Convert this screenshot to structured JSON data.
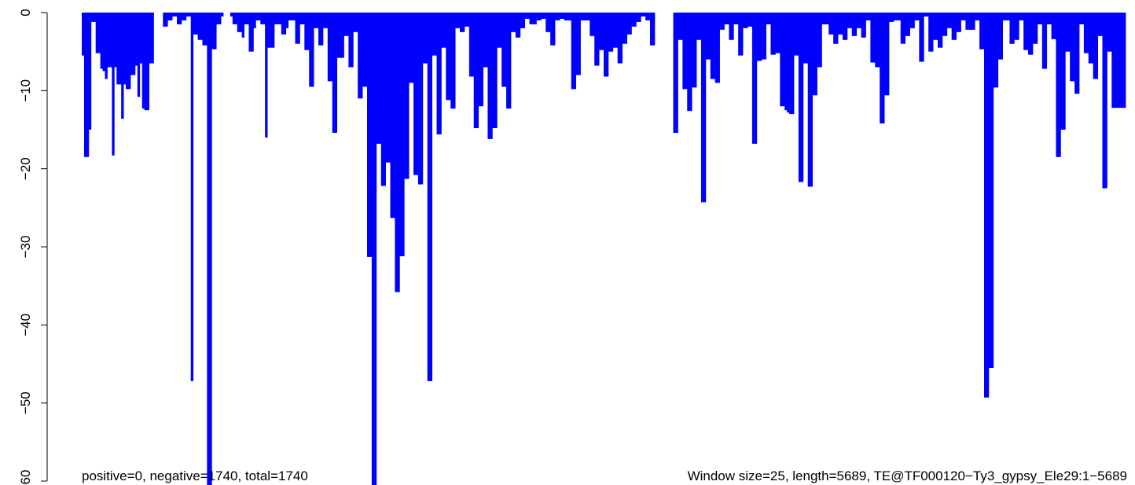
{
  "chart_data": {
    "type": "bar",
    "ylim": [
      -60,
      0
    ],
    "yticks": [
      0,
      -10,
      -20,
      -30,
      -40,
      -50,
      -60
    ],
    "ytick_labels": [
      "0",
      "−10",
      "−20",
      "−30",
      "−40",
      "−50",
      "−60"
    ],
    "grid": false,
    "bar_color": "#0000FF",
    "annotation_left": "positive=0, negative=1740, total=1740",
    "annotation_right": "Window size=25, length=5689, TE@TF000120−Ty3_gypsy_Ele29:1−5689",
    "x_range": [
      1,
      5689
    ],
    "window_size": 25,
    "bins": [
      {
        "x": 0,
        "values": [
          -5.5,
          -18.5,
          -18.5,
          -15,
          -1.2
        ]
      },
      {
        "x": 5,
        "values": [
          -1.2,
          -5.2,
          -5.2,
          -7.2,
          -7.5
        ]
      },
      {
        "x": 10,
        "values": [
          -8.5,
          -7,
          -7,
          -18.3,
          -7
        ]
      },
      {
        "x": 15,
        "values": [
          -9.2,
          -9.2,
          -13.6,
          -9.2,
          -9.8
        ]
      },
      {
        "x": 20,
        "values": [
          -9.8,
          -8,
          -8,
          -6.8,
          -10.8
        ]
      },
      {
        "x": 25,
        "values": [
          -6.5,
          -12.3,
          -12.5,
          -12.5,
          -6.5
        ]
      },
      {
        "x": 30,
        "values": [
          -6.5,
          0,
          0,
          0,
          0
        ]
      },
      {
        "x": 35,
        "values": [
          -1.8,
          -1.8,
          -1,
          -1,
          -0.5
        ]
      },
      {
        "x": 40,
        "values": [
          -0.5,
          -1.5,
          -1.5,
          -1,
          -1
        ]
      },
      {
        "x": 45,
        "values": [
          -0.5,
          -0.5,
          -47.2,
          -2.8,
          -2.8
        ]
      },
      {
        "x": 50,
        "values": [
          -3.5,
          -3.5,
          -4.2,
          -4.2,
          -61.5
        ]
      },
      {
        "x": 55,
        "values": [
          -61.5,
          -4.7,
          -4.7,
          -1.5,
          -1.5
        ]
      },
      {
        "x": 60,
        "values": [
          -0.5,
          0,
          0,
          0,
          -0.5
        ]
      },
      {
        "x": 65,
        "values": [
          -1.5,
          -1.5,
          -2.5,
          -2.5,
          -3.2
        ]
      },
      {
        "x": 70,
        "values": [
          -1.5,
          -1.5,
          -5,
          -5,
          -2
        ]
      },
      {
        "x": 75,
        "values": [
          -1,
          -1,
          -1.5,
          -1.5,
          -16
        ]
      },
      {
        "x": 80,
        "values": [
          -4.5,
          -4.5,
          -4.5,
          -1.5,
          -1.5
        ]
      },
      {
        "x": 85,
        "values": [
          -1.5,
          -2.8,
          -2.8,
          -2,
          -1
        ]
      },
      {
        "x": 90,
        "values": [
          -1,
          -1,
          -4,
          -4,
          -1.5
        ]
      },
      {
        "x": 95,
        "values": [
          -1.5,
          -4.8,
          -4.8,
          -9.5,
          -9.5
        ]
      },
      {
        "x": 100,
        "values": [
          -2,
          -2,
          -4.2,
          -4.2,
          -2
        ]
      },
      {
        "x": 105,
        "values": [
          -2,
          -8.8,
          -8.8,
          -15.4,
          -15.4
        ]
      },
      {
        "x": 110,
        "values": [
          -5.8,
          -5.8,
          -5.8,
          -3,
          -3
        ]
      },
      {
        "x": 115,
        "values": [
          -7,
          -7,
          -2.5,
          -2.5,
          -11
        ]
      },
      {
        "x": 120,
        "values": [
          -11,
          -9.5,
          -9.5,
          -31.3,
          -31.3
        ]
      },
      {
        "x": 125,
        "values": [
          -61.5,
          -61.5,
          -16.8,
          -16.8,
          -22.2
        ]
      },
      {
        "x": 130,
        "values": [
          -22.2,
          -19.2,
          -19.2,
          -26.3,
          -26.3
        ]
      },
      {
        "x": 135,
        "values": [
          -35.8,
          -35.8,
          -31.2,
          -31.2,
          -21.3
        ]
      },
      {
        "x": 140,
        "values": [
          -21.3,
          -9,
          -9,
          -20.8,
          -20.8
        ]
      },
      {
        "x": 145,
        "values": [
          -22,
          -22,
          -6.5,
          -6.5,
          -47.2
        ]
      },
      {
        "x": 150,
        "values": [
          -47.2,
          -5.5,
          -5.5,
          -15.6,
          -15.6
        ]
      },
      {
        "x": 155,
        "values": [
          -4.5,
          -4.5,
          -11.2,
          -11.2,
          -12.3
        ]
      },
      {
        "x": 160,
        "values": [
          -12.3,
          -2,
          -2,
          -2.5,
          -2.5
        ]
      },
      {
        "x": 165,
        "values": [
          -1.8,
          -1.8,
          -8.2,
          -8.2,
          -14.8
        ]
      },
      {
        "x": 170,
        "values": [
          -14.8,
          -12,
          -12,
          -7,
          -7
        ]
      },
      {
        "x": 175,
        "values": [
          -16.2,
          -16.2,
          -14.8,
          -14.8,
          -4.5
        ]
      },
      {
        "x": 180,
        "values": [
          -4.5,
          -9.5,
          -9.5,
          -12.3,
          -12.3
        ]
      },
      {
        "x": 185,
        "values": [
          -2.5,
          -2.5,
          -3.2,
          -3.2,
          -2
        ]
      },
      {
        "x": 190,
        "values": [
          -2,
          -0.8,
          -0.8,
          -1.5,
          -1.5
        ]
      },
      {
        "x": 195,
        "values": [
          -1.5,
          -1,
          -1,
          -0.8,
          -0.8
        ]
      },
      {
        "x": 200,
        "values": [
          -2.5,
          -2.5,
          -4.2,
          -4.2,
          -1
        ]
      },
      {
        "x": 205,
        "values": [
          -1,
          -0.8,
          -0.8,
          -1,
          -1
        ]
      },
      {
        "x": 210,
        "values": [
          -1,
          -9.8,
          -9.8,
          -8,
          -8
        ]
      },
      {
        "x": 215,
        "values": [
          -1,
          -1,
          -1,
          -1,
          -3
        ]
      },
      {
        "x": 220,
        "values": [
          -3,
          -6.8,
          -6.8,
          -4.8,
          -4.8
        ]
      },
      {
        "x": 225,
        "values": [
          -8.2,
          -8.2,
          -5,
          -5,
          -4.5
        ]
      },
      {
        "x": 230,
        "values": [
          -4.5,
          -6.5,
          -6.5,
          -4,
          -4
        ]
      },
      {
        "x": 235,
        "values": [
          -2.8,
          -2.8,
          -1.8,
          -1.8,
          -1.2
        ]
      },
      {
        "x": 240,
        "values": [
          -1.2,
          -0.5,
          -0.5,
          -1,
          -1
        ]
      },
      {
        "x": 245,
        "values": [
          -4.2,
          -4.2,
          0,
          0,
          0
        ]
      },
      {
        "x": 250,
        "values": [
          0,
          0,
          0,
          0,
          0
        ]
      },
      {
        "x": 255,
        "values": [
          -15.4,
          -15.4,
          -3.5,
          -3.5,
          -9.8
        ]
      },
      {
        "x": 260,
        "values": [
          -9.8,
          -12.6,
          -12.6,
          -9.6,
          -9.6
        ]
      },
      {
        "x": 265,
        "values": [
          -3.5,
          -3.5,
          -24.3,
          -24.3,
          -6
        ]
      },
      {
        "x": 270,
        "values": [
          -6,
          -8.5,
          -8.5,
          -9,
          -9
        ]
      },
      {
        "x": 275,
        "values": [
          -2.2,
          -2.2,
          -1.5,
          -1.5,
          -3.5
        ]
      },
      {
        "x": 280,
        "values": [
          -3.5,
          -1.5,
          -1.5,
          -5.5,
          -5.5
        ]
      },
      {
        "x": 285,
        "values": [
          -2,
          -2,
          -1.8,
          -1.8,
          -16.8
        ]
      },
      {
        "x": 290,
        "values": [
          -16.8,
          -6.2,
          -6.2,
          -6,
          -6
        ]
      },
      {
        "x": 295,
        "values": [
          -1.5,
          -1.5,
          -5.4,
          -5.4,
          -5.2
        ]
      },
      {
        "x": 300,
        "values": [
          -5.2,
          -12,
          -12,
          -12.5,
          -12.8
        ]
      },
      {
        "x": 305,
        "values": [
          -13,
          -13,
          -5.5,
          -5.5,
          -21.7
        ]
      },
      {
        "x": 310,
        "values": [
          -21.7,
          -6.5,
          -6.5,
          -22.3,
          -22.3
        ]
      },
      {
        "x": 315,
        "values": [
          -10.6,
          -10.6,
          -7,
          -7,
          -1.5
        ]
      },
      {
        "x": 320,
        "values": [
          -1.5,
          -1.5,
          -2.8,
          -2.8,
          -4
        ]
      },
      {
        "x": 325,
        "values": [
          -4,
          -2.8,
          -2.8,
          -3.5,
          -3.5
        ]
      },
      {
        "x": 330,
        "values": [
          -2,
          -2,
          -3,
          -3,
          -2
        ]
      },
      {
        "x": 335,
        "values": [
          -2,
          -3.2,
          -3.2,
          -1,
          -1
        ]
      },
      {
        "x": 340,
        "values": [
          -6.4,
          -6.4,
          -7,
          -7,
          -14.2
        ]
      },
      {
        "x": 345,
        "values": [
          -14.2,
          -10.6,
          -10.6,
          -1.2,
          -1.2
        ]
      },
      {
        "x": 350,
        "values": [
          -1,
          -1,
          -1,
          -4,
          -4
        ]
      },
      {
        "x": 355,
        "values": [
          -3,
          -3,
          -2,
          -2,
          -1
        ]
      },
      {
        "x": 360,
        "values": [
          -1,
          -6.3,
          -6.3,
          -0.5,
          -0.5
        ]
      },
      {
        "x": 365,
        "values": [
          -5,
          -5,
          -3.5,
          -3.5,
          -4.5
        ]
      },
      {
        "x": 370,
        "values": [
          -4.5,
          -3,
          -3,
          -2,
          -2
        ]
      },
      {
        "x": 375,
        "values": [
          -3.5,
          -3.5,
          -2.5,
          -2.5,
          -1
        ]
      },
      {
        "x": 380,
        "values": [
          -1,
          -2.2,
          -2.2,
          -2.2,
          -2.2
        ]
      },
      {
        "x": 385,
        "values": [
          -1,
          -1,
          -4.7,
          -4.7,
          -49.3
        ]
      },
      {
        "x": 390,
        "values": [
          -49.3,
          -45.5,
          -45.5,
          -9.6,
          -9.6
        ]
      },
      {
        "x": 395,
        "values": [
          -6,
          -6,
          -1,
          -1,
          -1
        ]
      },
      {
        "x": 400,
        "values": [
          -4,
          -4,
          -3.5,
          -3.5,
          -1
        ]
      },
      {
        "x": 405,
        "values": [
          -1,
          -4.8,
          -4.8,
          -5.4,
          -5.4
        ]
      },
      {
        "x": 410,
        "values": [
          -4,
          -4,
          -1.5,
          -1.5,
          -7.2
        ]
      },
      {
        "x": 415,
        "values": [
          -7.2,
          -1.5,
          -1.5,
          -3.4,
          -3.4
        ]
      },
      {
        "x": 420,
        "values": [
          -18.5,
          -18.5,
          -15,
          -15,
          -5
        ]
      },
      {
        "x": 425,
        "values": [
          -5,
          -8.8,
          -8.8,
          -10.4,
          -10.4
        ]
      },
      {
        "x": 430,
        "values": [
          -1.5,
          -1.5,
          -5.2,
          -5.2,
          -6.5
        ]
      },
      {
        "x": 435,
        "values": [
          -6.5,
          -8.5,
          -8.5,
          -3,
          -3
        ]
      },
      {
        "x": 440,
        "values": [
          -22.5,
          -22.5,
          -5,
          -5,
          -12.2
        ]
      },
      {
        "x": 445,
        "values": [
          -12.2,
          -12.2,
          -12.2,
          -12.2,
          -12.2
        ]
      }
    ]
  }
}
